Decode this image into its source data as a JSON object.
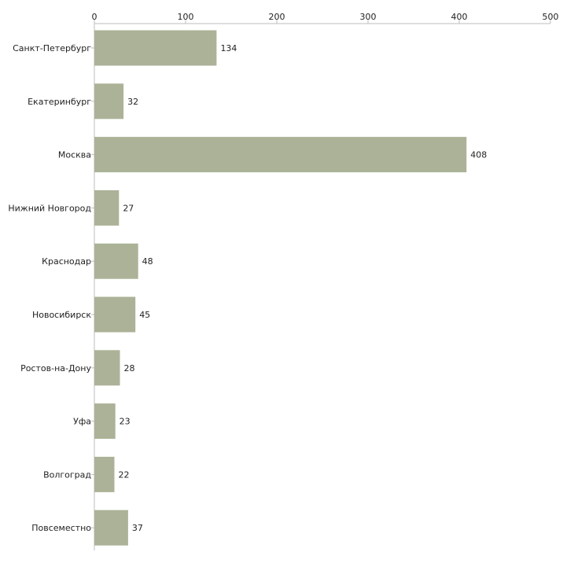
{
  "chart_data": {
    "type": "bar",
    "orientation": "horizontal",
    "title": "",
    "xlabel": "",
    "ylabel": "",
    "xlim": [
      0,
      500
    ],
    "ticks": [
      0,
      100,
      200,
      300,
      400,
      500
    ],
    "x_axis_position": "top",
    "grid": false,
    "bar_color": "#abb297",
    "categories": [
      "Санкт-Петербург",
      "Екатеринбург",
      "Москва",
      "Нижний Новгород",
      "Краснодар",
      "Новосибирск",
      "Ростов-на-Дону",
      "Уфа",
      "Волгоград",
      "Повсеместно"
    ],
    "values": [
      134,
      32,
      408,
      27,
      48,
      45,
      28,
      23,
      22,
      37
    ]
  }
}
